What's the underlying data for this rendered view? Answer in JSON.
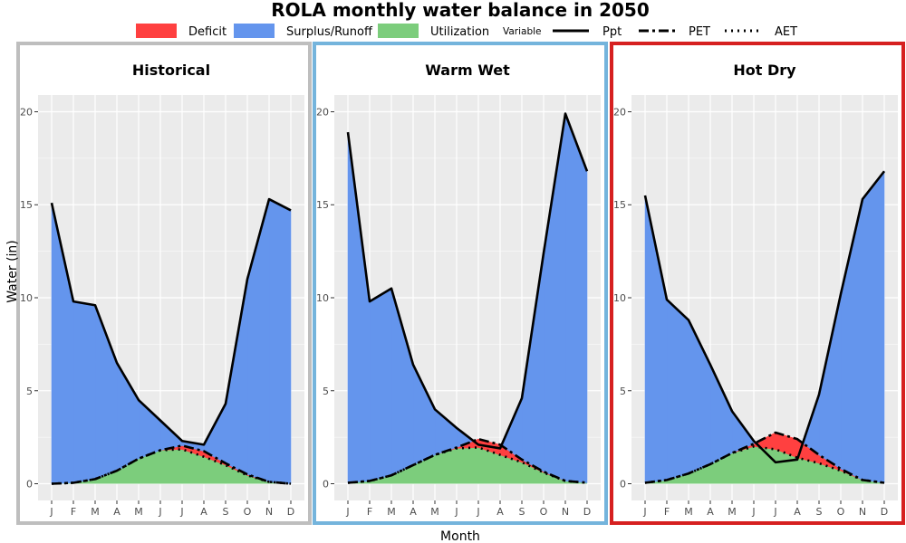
{
  "title": "ROLA monthly water balance in 2050",
  "legend": {
    "fill_items": [
      {
        "label": "Deficit",
        "color": "#ff4040"
      },
      {
        "label": "Surplus/Runoff",
        "color": "#6495ed"
      },
      {
        "label": "Utilization",
        "color": "#7ccd7c"
      }
    ],
    "variable_title": "Variable",
    "line_items": [
      {
        "label": "Ppt",
        "dash": "solid"
      },
      {
        "label": "PET",
        "dash": "dashdot"
      },
      {
        "label": "AET",
        "dash": "dotted"
      }
    ]
  },
  "colors": {
    "panel_bg": "#ebebeb",
    "grid": "#ffffff",
    "deficit": "#ff4040",
    "surplus": "#6495ed",
    "utilization": "#7ccd7c",
    "line": "#000000"
  },
  "chart_data": {
    "type": "area",
    "xlabel": "Month",
    "ylabel": "Water (in)",
    "ylim": [
      -0.9,
      20.9
    ],
    "yticks": [
      0,
      5,
      10,
      15,
      20
    ],
    "categories": [
      "J",
      "F",
      "M",
      "A",
      "M",
      "J",
      "J",
      "A",
      "S",
      "O",
      "N",
      "D"
    ],
    "grid": true,
    "legend_position": "top",
    "panels": [
      {
        "name": "Historical",
        "border_color": "#bebebe",
        "ppt": [
          15.1,
          9.8,
          9.6,
          6.5,
          4.5,
          3.4,
          2.3,
          2.1,
          4.3,
          11.0,
          15.3,
          14.7
        ],
        "pet": [
          0.0,
          0.05,
          0.25,
          0.7,
          1.35,
          1.8,
          2.05,
          1.75,
          1.1,
          0.5,
          0.1,
          0.0
        ],
        "aet": [
          0.0,
          0.05,
          0.25,
          0.7,
          1.35,
          1.8,
          1.85,
          1.45,
          1.0,
          0.45,
          0.1,
          0.0
        ]
      },
      {
        "name": "Warm Wet",
        "border_color": "#74b4dc",
        "ppt": [
          18.9,
          9.8,
          10.5,
          6.4,
          4.0,
          3.0,
          2.1,
          1.9,
          4.6,
          12.4,
          19.9,
          16.8
        ],
        "pet": [
          0.05,
          0.15,
          0.45,
          1.0,
          1.55,
          1.95,
          2.4,
          2.1,
          1.3,
          0.65,
          0.15,
          0.05
        ],
        "aet": [
          0.05,
          0.15,
          0.45,
          1.0,
          1.55,
          1.9,
          1.95,
          1.55,
          1.15,
          0.6,
          0.15,
          0.05
        ]
      },
      {
        "name": "Hot Dry",
        "border_color": "#d62020",
        "ppt": [
          15.5,
          9.9,
          8.8,
          6.4,
          3.9,
          2.3,
          1.15,
          1.3,
          4.8,
          10.2,
          15.3,
          16.8
        ],
        "pet": [
          0.05,
          0.2,
          0.55,
          1.05,
          1.65,
          2.15,
          2.75,
          2.4,
          1.55,
          0.8,
          0.2,
          0.05
        ],
        "aet": [
          0.05,
          0.2,
          0.55,
          1.05,
          1.65,
          2.0,
          1.85,
          1.4,
          1.1,
          0.7,
          0.2,
          0.05
        ]
      }
    ]
  }
}
